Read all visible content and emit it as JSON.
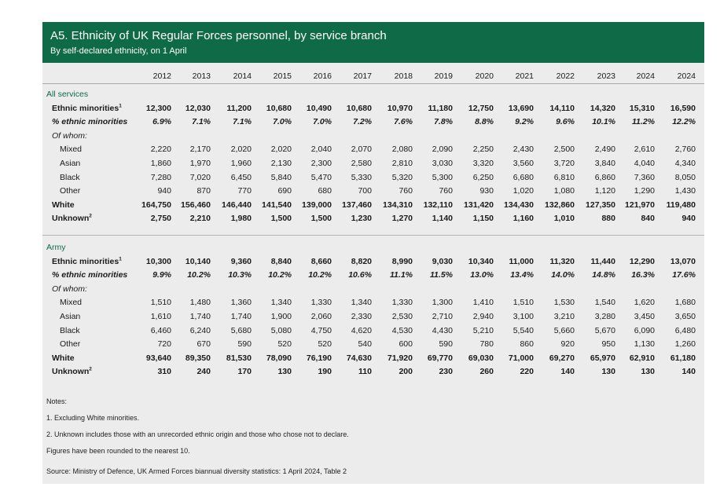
{
  "title": "A5. Ethnicity of UK Regular Forces personnel, by service branch",
  "subtitle": "By self-declared ethnicity, on 1 April",
  "years": [
    "2012",
    "2013",
    "2014",
    "2015",
    "2016",
    "2017",
    "2018",
    "2019",
    "2020",
    "2021",
    "2022",
    "2023",
    "2024",
    "2024"
  ],
  "sections": [
    {
      "name": "All services",
      "rows": [
        {
          "label": "Ethnic minorities",
          "sup": "1",
          "style": "bold",
          "indent": 1,
          "values": [
            "12,300",
            "12,030",
            "11,200",
            "10,680",
            "10,490",
            "10,680",
            "10,970",
            "11,180",
            "12,750",
            "13,690",
            "14,110",
            "14,320",
            "15,310",
            "16,590"
          ]
        },
        {
          "label": "% ethnic minorities",
          "sup": "",
          "style": "italic",
          "indent": 1,
          "values": [
            "6.9%",
            "7.1%",
            "7.1%",
            "7.0%",
            "7.0%",
            "7.2%",
            "7.6%",
            "7.8%",
            "8.8%",
            "9.2%",
            "9.6%",
            "10.1%",
            "11.2%",
            "12.2%"
          ]
        },
        {
          "label": "Of whom:",
          "sup": "",
          "style": "ofwhom",
          "indent": 1,
          "values": []
        },
        {
          "label": "Mixed",
          "sup": "",
          "style": "normal",
          "indent": 2,
          "values": [
            "2,220",
            "2,170",
            "2,020",
            "2,020",
            "2,040",
            "2,070",
            "2,080",
            "2,090",
            "2,250",
            "2,430",
            "2,500",
            "2,490",
            "2,610",
            "2,760"
          ]
        },
        {
          "label": "Asian",
          "sup": "",
          "style": "normal",
          "indent": 2,
          "values": [
            "1,860",
            "1,970",
            "1,960",
            "2,130",
            "2,300",
            "2,580",
            "2,810",
            "3,030",
            "3,320",
            "3,560",
            "3,720",
            "3,840",
            "4,040",
            "4,340"
          ]
        },
        {
          "label": "Black",
          "sup": "",
          "style": "normal",
          "indent": 2,
          "values": [
            "7,280",
            "7,020",
            "6,450",
            "5,840",
            "5,470",
            "5,330",
            "5,320",
            "5,300",
            "6,250",
            "6,680",
            "6,810",
            "6,860",
            "7,360",
            "8,050"
          ]
        },
        {
          "label": "Other",
          "sup": "",
          "style": "normal",
          "indent": 2,
          "values": [
            "940",
            "870",
            "770",
            "690",
            "680",
            "700",
            "760",
            "760",
            "930",
            "1,020",
            "1,080",
            "1,120",
            "1,290",
            "1,430"
          ]
        },
        {
          "label": "White",
          "sup": "",
          "style": "bold",
          "indent": 1,
          "values": [
            "164,750",
            "156,460",
            "146,440",
            "141,540",
            "139,000",
            "137,460",
            "134,310",
            "132,110",
            "131,420",
            "134,430",
            "132,860",
            "127,350",
            "121,970",
            "119,480"
          ]
        },
        {
          "label": "Unknown",
          "sup": "2",
          "style": "bold",
          "indent": 1,
          "values": [
            "2,750",
            "2,210",
            "1,980",
            "1,500",
            "1,500",
            "1,230",
            "1,270",
            "1,140",
            "1,150",
            "1,160",
            "1,010",
            "880",
            "840",
            "940"
          ]
        }
      ]
    },
    {
      "name": "Army",
      "rows": [
        {
          "label": "Ethnic minorities",
          "sup": "1",
          "style": "bold",
          "indent": 1,
          "values": [
            "10,300",
            "10,140",
            "9,360",
            "8,840",
            "8,660",
            "8,820",
            "8,990",
            "9,030",
            "10,340",
            "11,000",
            "11,320",
            "11,440",
            "12,290",
            "13,070"
          ]
        },
        {
          "label": "% ethnic minorities",
          "sup": "",
          "style": "italic",
          "indent": 1,
          "values": [
            "9.9%",
            "10.2%",
            "10.3%",
            "10.2%",
            "10.2%",
            "10.6%",
            "11.1%",
            "11.5%",
            "13.0%",
            "13.4%",
            "14.0%",
            "14.8%",
            "16.3%",
            "17.6%"
          ]
        },
        {
          "label": "Of whom:",
          "sup": "",
          "style": "ofwhom",
          "indent": 1,
          "values": []
        },
        {
          "label": "Mixed",
          "sup": "",
          "style": "normal",
          "indent": 2,
          "values": [
            "1,510",
            "1,480",
            "1,360",
            "1,340",
            "1,330",
            "1,340",
            "1,330",
            "1,300",
            "1,410",
            "1,510",
            "1,530",
            "1,540",
            "1,620",
            "1,680"
          ]
        },
        {
          "label": "Asian",
          "sup": "",
          "style": "normal",
          "indent": 2,
          "values": [
            "1,610",
            "1,740",
            "1,740",
            "1,900",
            "2,060",
            "2,330",
            "2,530",
            "2,710",
            "2,940",
            "3,100",
            "3,210",
            "3,280",
            "3,450",
            "3,650"
          ]
        },
        {
          "label": "Black",
          "sup": "",
          "style": "normal",
          "indent": 2,
          "values": [
            "6,460",
            "6,240",
            "5,680",
            "5,080",
            "4,750",
            "4,620",
            "4,530",
            "4,430",
            "5,210",
            "5,540",
            "5,660",
            "5,670",
            "6,090",
            "6,480"
          ]
        },
        {
          "label": "Other",
          "sup": "",
          "style": "normal",
          "indent": 2,
          "values": [
            "720",
            "670",
            "590",
            "520",
            "520",
            "540",
            "600",
            "590",
            "780",
            "860",
            "920",
            "950",
            "1,130",
            "1,260"
          ]
        },
        {
          "label": "White",
          "sup": "",
          "style": "bold",
          "indent": 1,
          "values": [
            "93,640",
            "89,350",
            "81,530",
            "78,090",
            "76,190",
            "74,630",
            "71,920",
            "69,770",
            "69,030",
            "71,000",
            "69,270",
            "65,970",
            "62,910",
            "61,180"
          ]
        },
        {
          "label": "Unknown",
          "sup": "2",
          "style": "bold",
          "indent": 1,
          "values": [
            "310",
            "240",
            "170",
            "130",
            "190",
            "110",
            "200",
            "230",
            "260",
            "220",
            "140",
            "130",
            "130",
            "140"
          ]
        }
      ]
    }
  ],
  "notes": {
    "heading": "Notes:",
    "items": [
      "1. Excluding White minorities.",
      "2. Unknown includes those with an unrecorded ethnic origin and those who chose not to declare.",
      "Figures have been rounded to the nearest 10."
    ],
    "source": "Source: Ministry of Defence, UK Armed Forces biannual diversity statistics: 1 April 2024, Table 2"
  },
  "colors": {
    "header_bg": "#0e6a47",
    "panel_bg": "#ececec",
    "group_label": "#0e6a47"
  }
}
